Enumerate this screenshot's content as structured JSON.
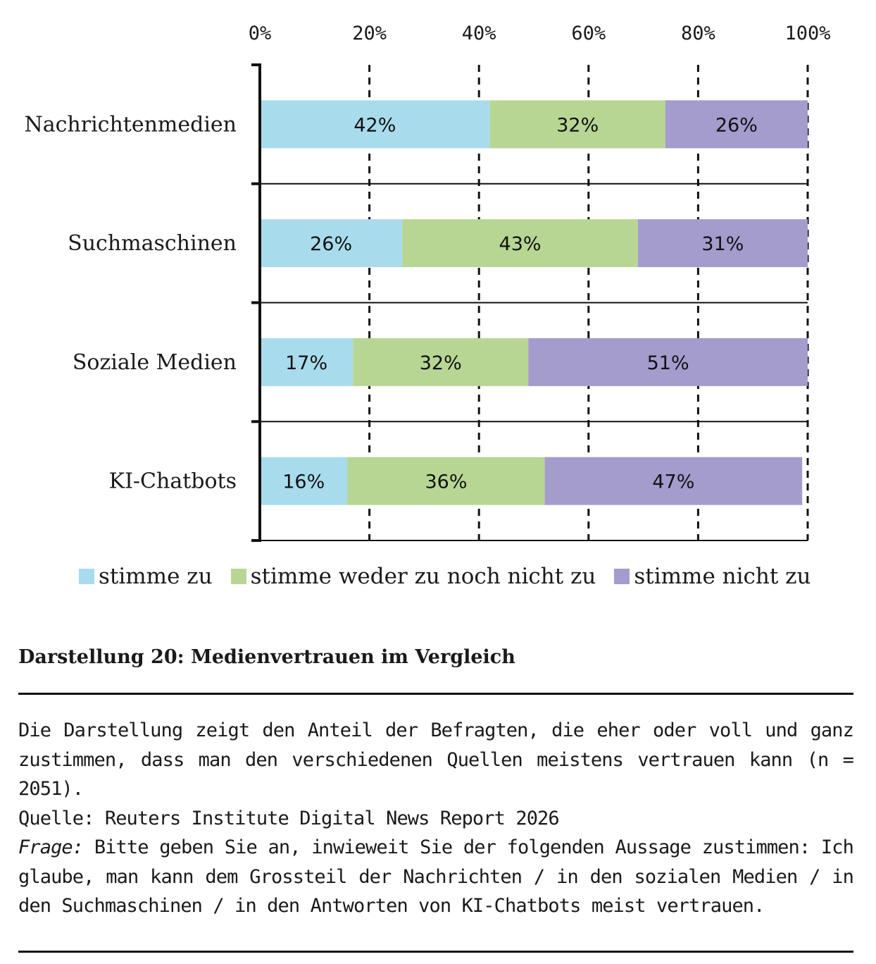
{
  "chart_data": {
    "type": "bar",
    "orientation": "horizontal",
    "stacked": true,
    "categories": [
      "Nachrichtenmedien",
      "Suchmaschinen",
      "Soziale Medien",
      "KI-Chatbots"
    ],
    "series": [
      {
        "name": "stimme zu",
        "color": "#a8dcec",
        "values": [
          42,
          26,
          17,
          16
        ]
      },
      {
        "name": "stimme weder zu noch nicht zu",
        "color": "#b8d693",
        "values": [
          32,
          43,
          32,
          36
        ]
      },
      {
        "name": "stimme nicht zu",
        "color": "#a49ccc",
        "values": [
          26,
          31,
          51,
          47
        ]
      }
    ],
    "xlim": [
      0,
      100
    ],
    "x_ticks": [
      "0%",
      "20%",
      "40%",
      "60%",
      "80%",
      "100%"
    ],
    "x_tick_values": [
      0,
      20,
      40,
      60,
      80,
      100
    ],
    "x_axis_position": "top",
    "grid": "vertical dashed",
    "legend_placement": "bottom",
    "data_labels": [
      [
        "42%",
        "32%",
        "26%"
      ],
      [
        "26%",
        "43%",
        "31%"
      ],
      [
        "17%",
        "32%",
        "51%"
      ],
      [
        "16%",
        "36%",
        "47%"
      ]
    ]
  },
  "caption": {
    "title": "Darstellung 20: Medienvertrauen im Vergleich",
    "description": "Die Darstellung zeigt den Anteil der Befragten, die eher oder voll und ganz zu­stimmen, dass man den verschiedenen Quellen meistens vertrauen kann (n = 2051).",
    "source": "Quelle: Reuters Institute Digital News Report 2026",
    "question_label": "Frage:",
    "question_text": " Bitte geben Sie an, inwieweit Sie der folgenden Aussage zustimmen: Ich glaube, man kann dem Grossteil der Nachrichten / in den sozialen Medien / in den Suchmaschinen / in den Antworten von KI-Chatbots meist vertrauen."
  }
}
